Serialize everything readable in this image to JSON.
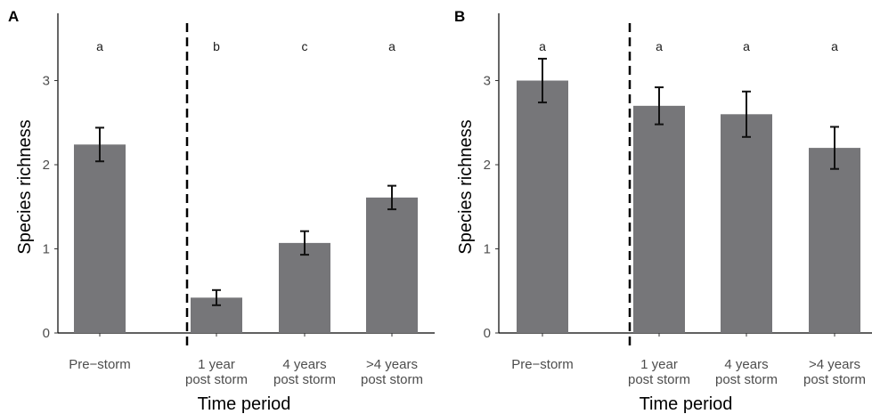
{
  "chart_data": [
    {
      "type": "bar",
      "panel": "A",
      "categories": [
        "Pre−storm",
        "1 year\npost  storm",
        "4 years\npost storm",
        ">4 years\npost storm"
      ],
      "values": [
        2.24,
        0.42,
        1.07,
        1.61
      ],
      "error_low": [
        2.04,
        0.33,
        0.93,
        1.47
      ],
      "error_high": [
        2.44,
        0.51,
        1.21,
        1.75
      ],
      "significance_letters": [
        "a",
        "b",
        "c",
        "a"
      ],
      "xlabel": "Time period",
      "ylabel": "Species richness",
      "yticks": [
        "0",
        "1",
        "2",
        "3"
      ],
      "ylim": [
        0,
        3.8
      ],
      "bar_color": "#767679",
      "divider": "dashed vertical line between Pre-storm and post-storm periods"
    },
    {
      "type": "bar",
      "panel": "B",
      "categories": [
        "Pre−storm",
        "1 year\npost  storm",
        "4 years\npost storm",
        ">4 years\npost storm"
      ],
      "values": [
        3.0,
        2.7,
        2.6,
        2.2
      ],
      "error_low": [
        2.74,
        2.48,
        2.33,
        1.95
      ],
      "error_high": [
        3.26,
        2.92,
        2.87,
        2.45
      ],
      "significance_letters": [
        "a",
        "a",
        "a",
        "a"
      ],
      "xlabel": "Time period",
      "ylabel": "Species richness",
      "yticks": [
        "0",
        "1",
        "2",
        "3"
      ],
      "ylim": [
        0,
        3.8
      ],
      "bar_color": "#767679",
      "divider": "dashed vertical line between Pre-storm and post-storm periods"
    }
  ]
}
